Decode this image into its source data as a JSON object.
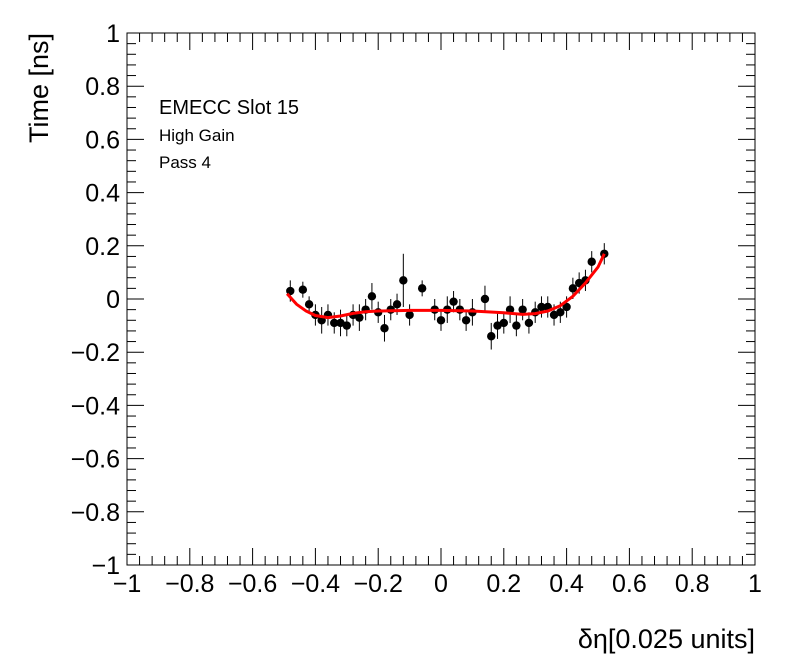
{
  "chart_data": {
    "type": "scatter",
    "xlabel": "δη[0.025 units]",
    "ylabel": "Time [ns]",
    "xlim": [
      -1,
      1
    ],
    "ylim": [
      -1,
      1
    ],
    "x_ticks": [
      "−1",
      "−0.8",
      "−0.6",
      "−0.4",
      "−0.2",
      "0",
      "0.2",
      "0.4",
      "0.6",
      "0.8",
      "1"
    ],
    "y_ticks": [
      "−1",
      "−0.8",
      "−0.6",
      "−0.4",
      "−0.2",
      "0",
      "0.2",
      "0.4",
      "0.6",
      "0.8",
      "1"
    ],
    "annotations": [
      "EMECC Slot 15",
      "High Gain",
      "Pass 4"
    ],
    "marker_color": "#000000",
    "fit_color": "#ff0000",
    "series": [
      {
        "values": [
          [
            -0.48,
            0.03,
            0.04
          ],
          [
            -0.44,
            0.035,
            0.03
          ],
          [
            -0.42,
            -0.02,
            0.03
          ],
          [
            -0.4,
            -0.06,
            0.04
          ],
          [
            -0.38,
            -0.08,
            0.05
          ],
          [
            -0.36,
            -0.06,
            0.04
          ],
          [
            -0.34,
            -0.09,
            0.04
          ],
          [
            -0.32,
            -0.09,
            0.05
          ],
          [
            -0.3,
            -0.1,
            0.04
          ],
          [
            -0.28,
            -0.06,
            0.04
          ],
          [
            -0.26,
            -0.07,
            0.05
          ],
          [
            -0.24,
            -0.04,
            0.04
          ],
          [
            -0.22,
            0.01,
            0.05
          ],
          [
            -0.2,
            -0.05,
            0.04
          ],
          [
            -0.18,
            -0.11,
            0.05
          ],
          [
            -0.16,
            -0.04,
            0.04
          ],
          [
            -0.14,
            -0.02,
            0.04
          ],
          [
            -0.12,
            0.07,
            0.1
          ],
          [
            -0.1,
            -0.06,
            0.04
          ],
          [
            -0.06,
            0.04,
            0.03
          ],
          [
            -0.02,
            -0.04,
            0.04
          ],
          [
            0.0,
            -0.08,
            0.04
          ],
          [
            0.02,
            -0.04,
            0.05
          ],
          [
            0.04,
            -0.01,
            0.04
          ],
          [
            0.06,
            -0.04,
            0.04
          ],
          [
            0.08,
            -0.08,
            0.04
          ],
          [
            0.1,
            -0.05,
            0.05
          ],
          [
            0.14,
            0.0,
            0.05
          ],
          [
            0.16,
            -0.14,
            0.05
          ],
          [
            0.18,
            -0.1,
            0.05
          ],
          [
            0.2,
            -0.09,
            0.04
          ],
          [
            0.22,
            -0.04,
            0.05
          ],
          [
            0.24,
            -0.1,
            0.04
          ],
          [
            0.26,
            -0.04,
            0.04
          ],
          [
            0.28,
            -0.09,
            0.04
          ],
          [
            0.3,
            -0.05,
            0.04
          ],
          [
            0.32,
            -0.03,
            0.04
          ],
          [
            0.34,
            -0.03,
            0.04
          ],
          [
            0.36,
            -0.06,
            0.04
          ],
          [
            0.38,
            -0.05,
            0.04
          ],
          [
            0.4,
            -0.03,
            0.04
          ],
          [
            0.42,
            0.04,
            0.04
          ],
          [
            0.44,
            0.06,
            0.04
          ],
          [
            0.46,
            0.07,
            0.04
          ],
          [
            0.48,
            0.14,
            0.04
          ],
          [
            0.52,
            0.17,
            0.04
          ]
        ]
      }
    ],
    "fit_curve": [
      [
        -0.49,
        0.02
      ],
      [
        -0.46,
        -0.02
      ],
      [
        -0.43,
        -0.045
      ],
      [
        -0.4,
        -0.062
      ],
      [
        -0.36,
        -0.07
      ],
      [
        -0.32,
        -0.064
      ],
      [
        -0.28,
        -0.054
      ],
      [
        -0.24,
        -0.048
      ],
      [
        -0.2,
        -0.045
      ],
      [
        -0.1,
        -0.043
      ],
      [
        0.0,
        -0.043
      ],
      [
        0.1,
        -0.045
      ],
      [
        0.2,
        -0.052
      ],
      [
        0.26,
        -0.058
      ],
      [
        0.3,
        -0.055
      ],
      [
        0.34,
        -0.045
      ],
      [
        0.38,
        -0.025
      ],
      [
        0.42,
        0.01
      ],
      [
        0.46,
        0.06
      ],
      [
        0.5,
        0.12
      ],
      [
        0.52,
        0.17
      ]
    ]
  }
}
